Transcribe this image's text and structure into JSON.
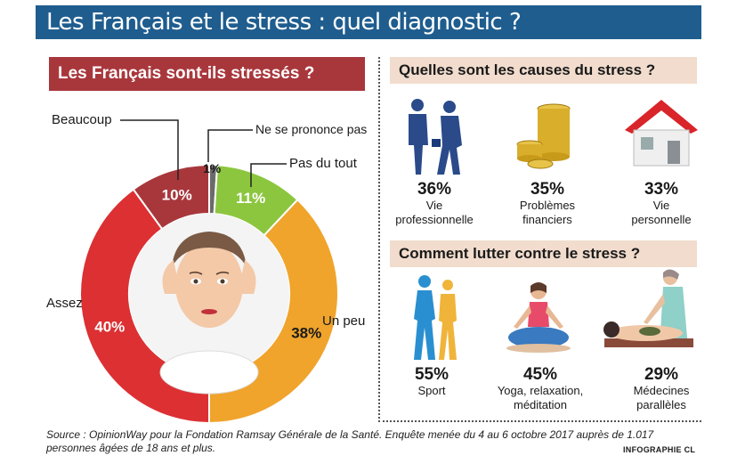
{
  "title": "Les Français et le stress : quel diagnostic ?",
  "left_section": {
    "title": "Les Français sont-ils stressés ?"
  },
  "chart_data": {
    "type": "pie",
    "title": "Les Français sont-ils stressés ?",
    "slices": [
      {
        "label": "Beaucoup",
        "value": 10,
        "display": "10%",
        "color": "#a8373c"
      },
      {
        "label": "Ne se prononce pas",
        "value": 1,
        "display": "1%",
        "color": "#6b6b6b"
      },
      {
        "label": "Pas du tout",
        "value": 11,
        "display": "11%",
        "color": "#8cc63f"
      },
      {
        "label": "Un peu",
        "value": 38,
        "display": "38%",
        "color": "#f0a42c"
      },
      {
        "label": "Assez",
        "value": 40,
        "display": "40%",
        "color": "#dc3033"
      }
    ]
  },
  "causes": {
    "title": "Quelles sont les causes du stress ?",
    "items": [
      {
        "pct": "36%",
        "line1": "Vie",
        "line2": "professionnelle"
      },
      {
        "pct": "35%",
        "line1": "Problèmes",
        "line2": "financiers"
      },
      {
        "pct": "33%",
        "line1": "Vie",
        "line2": "personnelle"
      }
    ]
  },
  "remedies": {
    "title": "Comment lutter contre le stress ?",
    "items": [
      {
        "pct": "55%",
        "line1": "Sport",
        "line2": ""
      },
      {
        "pct": "45%",
        "line1": "Yoga, relaxation,",
        "line2": "méditation"
      },
      {
        "pct": "29%",
        "line1": "Médecines",
        "line2": "parallèles"
      }
    ]
  },
  "source": "Source : OpinionWay pour la Fondation Ramsay Générale de la Santé. Enquête menée du 4 au 6 octobre 2017 auprès de 1.017 personnes âgées de 18 ans et plus.",
  "credit": "INFOGRAPHIE CL"
}
